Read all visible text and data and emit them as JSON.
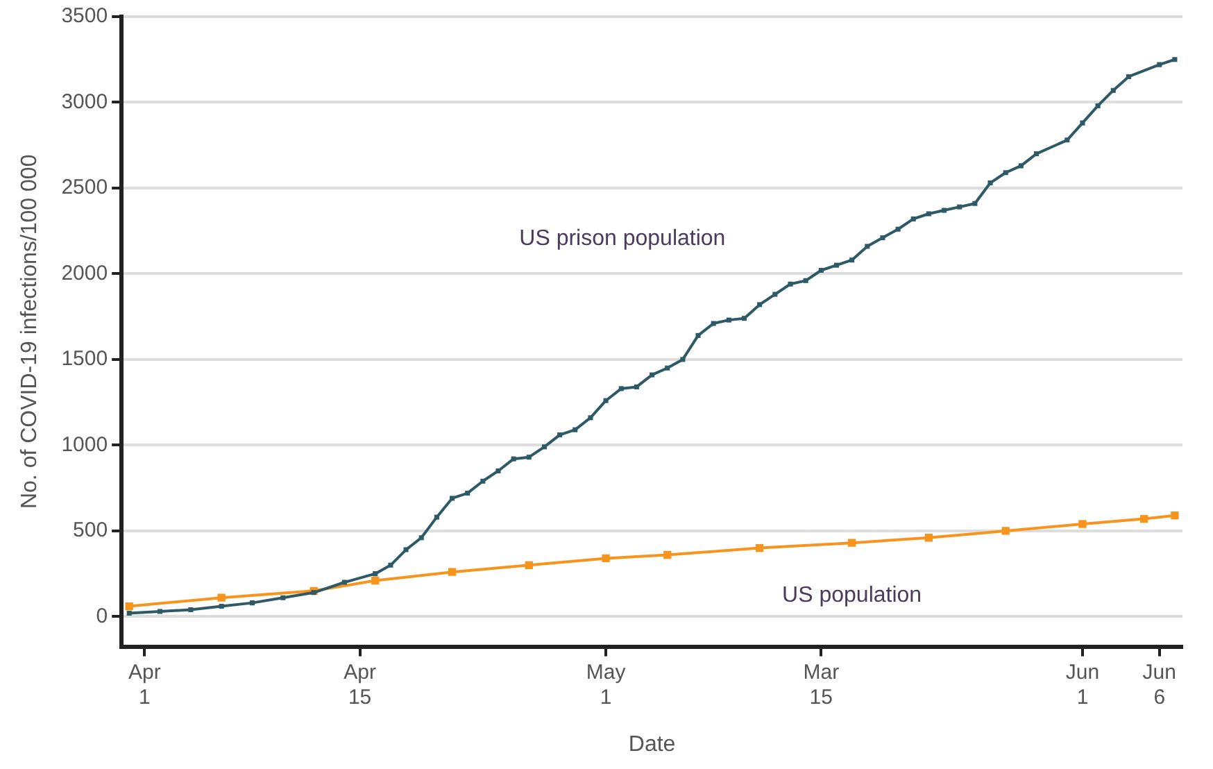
{
  "chart_data": {
    "type": "line",
    "xlabel": "Date",
    "ylabel": "No. of COVID-19 infections/100 000",
    "categories": [
      null,
      "Apr 1",
      null,
      null,
      null,
      null,
      null,
      null,
      null,
      null,
      null,
      null,
      null,
      null,
      null,
      "Apr 15",
      null,
      null,
      null,
      null,
      null,
      null,
      null,
      null,
      null,
      null,
      null,
      null,
      null,
      null,
      null,
      "May 1",
      null,
      null,
      null,
      null,
      null,
      null,
      null,
      null,
      null,
      null,
      null,
      null,
      null,
      "Mar 15",
      null,
      null,
      null,
      null,
      null,
      null,
      null,
      null,
      null,
      null,
      null,
      null,
      null,
      null,
      null,
      null,
      "Jun 1",
      null,
      null,
      null,
      null,
      "Jun 6",
      null
    ],
    "ylim": [
      -175,
      3500
    ],
    "yticks": [
      0,
      500,
      1000,
      1500,
      2000,
      2500,
      3000,
      3500
    ],
    "grid": "y",
    "marker": "square",
    "line_style": "solid",
    "series": [
      {
        "name": "US prison population",
        "color": "#2d5a66",
        "values": [
          20,
          null,
          30,
          null,
          40,
          null,
          60,
          null,
          80,
          null,
          110,
          null,
          140,
          null,
          200,
          null,
          250,
          300,
          390,
          460,
          580,
          690,
          720,
          790,
          850,
          920,
          930,
          990,
          1060,
          1090,
          1160,
          1260,
          1330,
          1340,
          1410,
          1450,
          1500,
          1640,
          1710,
          1730,
          1740,
          1820,
          1880,
          1940,
          1960,
          2020,
          2050,
          2080,
          2160,
          2210,
          2260,
          2320,
          2350,
          2370,
          2390,
          2410,
          2530,
          2590,
          2630,
          2700,
          null,
          2780,
          2880,
          2980,
          3070,
          3150,
          null,
          3220,
          3250
        ]
      },
      {
        "name": "US population",
        "color": "#f7941d",
        "values": [
          60,
          null,
          null,
          null,
          null,
          null,
          110,
          null,
          null,
          null,
          null,
          null,
          150,
          null,
          null,
          null,
          210,
          null,
          null,
          null,
          null,
          260,
          null,
          null,
          null,
          null,
          300,
          null,
          null,
          null,
          null,
          340,
          null,
          null,
          null,
          360,
          null,
          null,
          null,
          null,
          null,
          400,
          null,
          null,
          null,
          null,
          null,
          430,
          null,
          null,
          null,
          null,
          460,
          null,
          null,
          null,
          null,
          500,
          null,
          null,
          null,
          null,
          540,
          null,
          null,
          null,
          570,
          null,
          590
        ]
      }
    ]
  }
}
